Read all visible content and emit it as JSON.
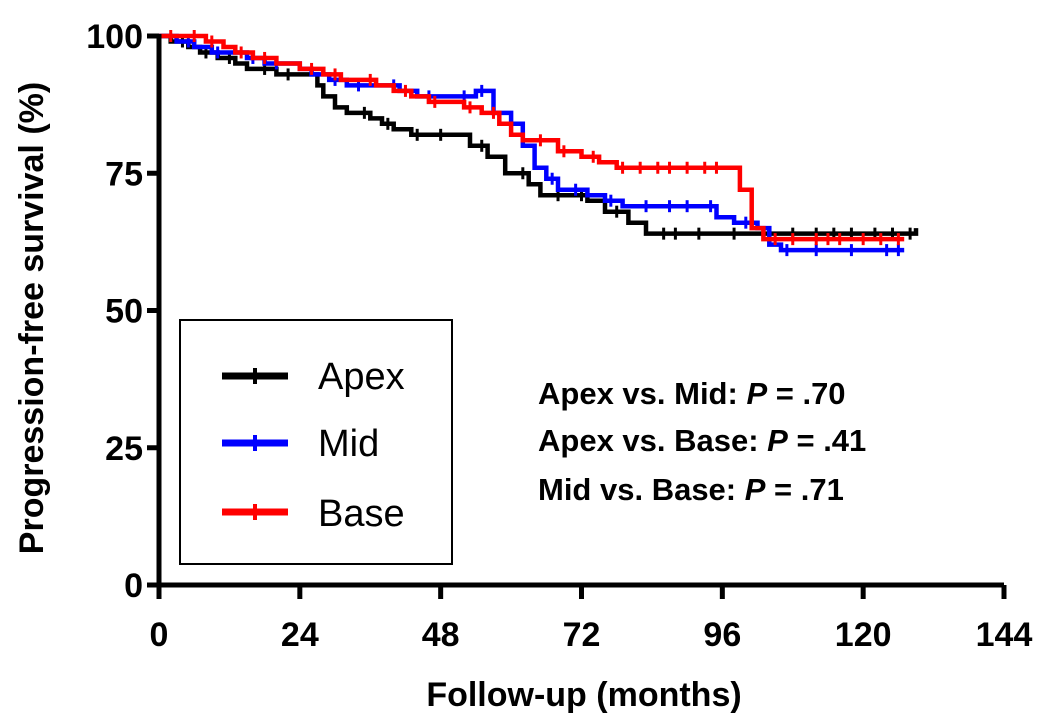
{
  "chart_data": {
    "type": "line",
    "subtype": "kaplan-meier step",
    "title": "",
    "xlabel": "Follow-up (months)",
    "ylabel": "Progression-free survival (%)",
    "xlim": [
      0,
      144
    ],
    "ylim": [
      0,
      100
    ],
    "xticks": [
      "0",
      "24",
      "48",
      "72",
      "96",
      "120",
      "144"
    ],
    "yticks": [
      "0",
      "25",
      "50",
      "75",
      "100"
    ],
    "grid": false,
    "legend_position": "bottom-left",
    "series": [
      {
        "name": "Apex",
        "color": "#000000",
        "x": [
          0,
          2,
          5,
          7,
          10,
          13,
          15,
          17,
          20,
          23,
          27,
          28,
          30,
          32,
          34,
          36,
          38,
          40,
          43,
          46,
          50,
          53,
          56,
          59,
          61,
          63,
          65,
          67,
          70,
          73,
          76,
          80,
          83,
          85,
          95,
          101,
          104,
          110,
          120,
          127,
          129
        ],
        "y": [
          100,
          99,
          98,
          97,
          96,
          95,
          94,
          94,
          93,
          93,
          91,
          89,
          87,
          86,
          86,
          85,
          84,
          83,
          82,
          82,
          82,
          80,
          78,
          75,
          75,
          73,
          71,
          71,
          71,
          70,
          68,
          66,
          64,
          64,
          64,
          64,
          64,
          64,
          64,
          64,
          65
        ],
        "censor_x": [
          4,
          8,
          12,
          18,
          22,
          35,
          39,
          44,
          48,
          55,
          62,
          68,
          72,
          78,
          86,
          88,
          92,
          98,
          108,
          112,
          115,
          118,
          122,
          125,
          128
        ]
      },
      {
        "name": "Mid",
        "color": "#0000ff",
        "x": [
          0,
          3,
          6,
          9,
          12,
          15,
          18,
          21,
          24,
          26,
          29,
          32,
          35,
          38,
          41,
          44,
          48,
          51,
          54,
          57,
          60,
          62,
          64,
          66,
          68,
          70,
          73,
          76,
          79,
          82,
          85,
          88,
          92,
          95,
          98,
          102,
          104,
          106,
          110,
          116,
          122,
          127
        ],
        "y": [
          100,
          99,
          98,
          97,
          97,
          96,
          95,
          95,
          94,
          93,
          92,
          91,
          91,
          91,
          90,
          89,
          89,
          89,
          90,
          86,
          84,
          80,
          76,
          74,
          72,
          72,
          71,
          70,
          69,
          69,
          69,
          69,
          69,
          67,
          66,
          65,
          62,
          61,
          61,
          61,
          61,
          61
        ],
        "censor_x": [
          5,
          10,
          16,
          20,
          30,
          34,
          40,
          46,
          52,
          55,
          67,
          71,
          77,
          83,
          87,
          90,
          94,
          100,
          107,
          112,
          118,
          124,
          126
        ]
      },
      {
        "name": "Base",
        "color": "#ff0000",
        "x": [
          0,
          4,
          8,
          11,
          13,
          16,
          20,
          24,
          28,
          31,
          34,
          37,
          40,
          43,
          46,
          49,
          52,
          55,
          58,
          60,
          62,
          64,
          66,
          68,
          70,
          72,
          75,
          78,
          81,
          84,
          88,
          92,
          96,
          98,
          99,
          101,
          103,
          106,
          110,
          118,
          127
        ],
        "y": [
          100,
          100,
          99,
          98,
          97,
          96,
          95,
          94,
          93,
          92,
          92,
          91,
          90,
          89,
          88,
          88,
          87,
          86,
          84,
          82,
          81,
          81,
          81,
          79,
          79,
          78,
          77,
          76,
          76,
          76,
          76,
          76,
          76,
          76,
          72,
          65,
          63,
          63,
          63,
          63,
          63
        ],
        "censor_x": [
          2,
          6,
          9,
          14,
          18,
          26,
          30,
          36,
          42,
          47,
          53,
          57,
          65,
          69,
          74,
          79,
          82,
          85,
          87,
          90,
          93,
          95,
          105,
          108,
          112,
          114,
          116,
          120,
          123,
          126
        ]
      }
    ],
    "annotations": [
      {
        "label": "Apex vs. Mid: ",
        "p": "P",
        "value": " = .70"
      },
      {
        "label": "Apex vs. Base: ",
        "p": "P",
        "value": " = .41"
      },
      {
        "label": "Mid vs. Base: ",
        "p": "P",
        "value": " = .71"
      }
    ]
  }
}
